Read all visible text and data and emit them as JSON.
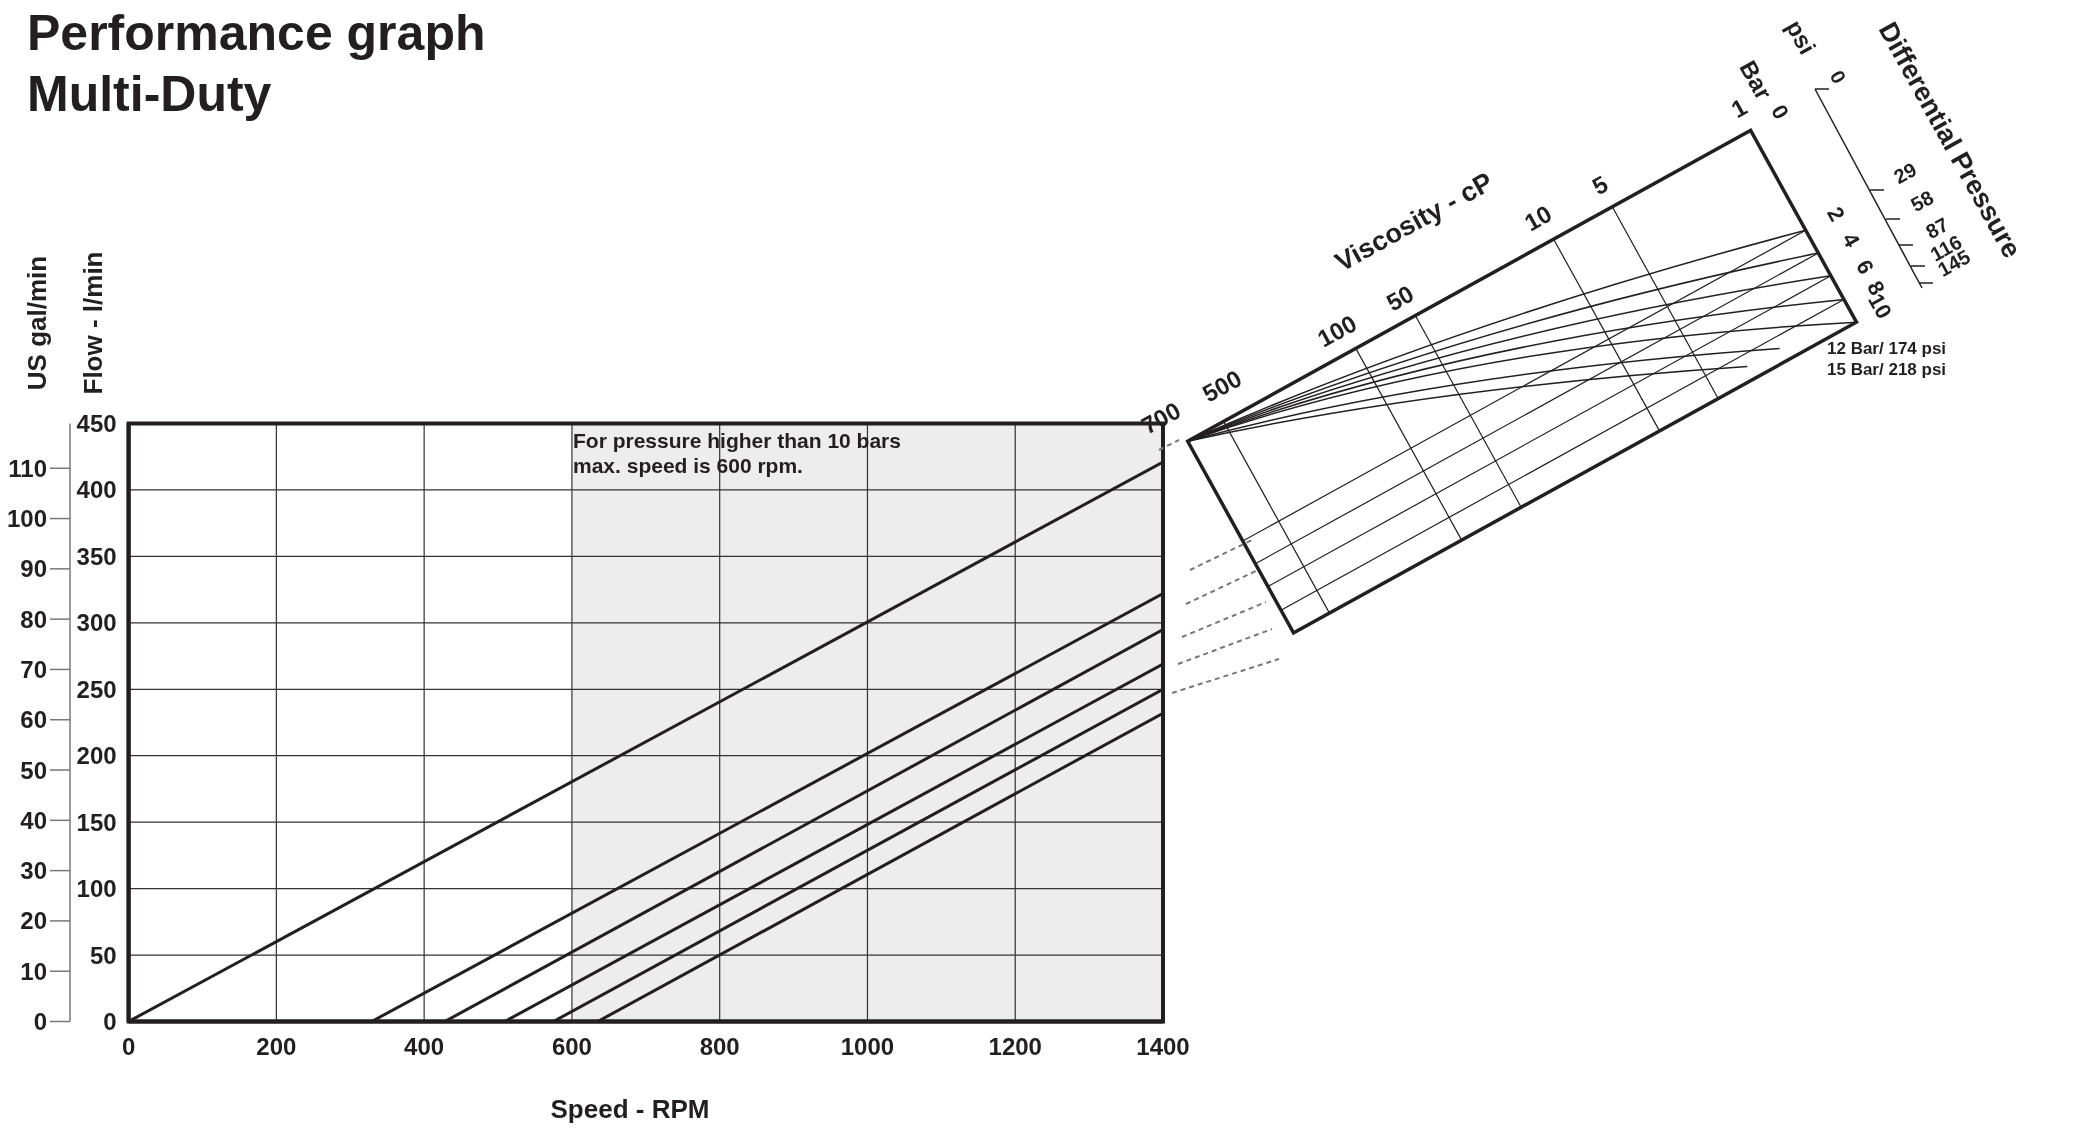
{
  "chart_data": [
    {
      "type": "line",
      "title": "Performance graph",
      "subtitle": "Multi-Duty",
      "xlabel": "Speed - RPM",
      "ylabel": "Flow - l/min",
      "y2label": "US gal/min",
      "annotations": [
        "For pressure higher than 10 bars\nmax. speed is 600 rpm."
      ],
      "xlim": [
        0,
        1400
      ],
      "xticks": [
        0,
        200,
        400,
        600,
        800,
        1000,
        1200,
        1400
      ],
      "ylim": [
        0,
        450
      ],
      "yticks": [
        0,
        50,
        100,
        150,
        200,
        250,
        300,
        350,
        400,
        450
      ],
      "y2lim": [
        0,
        118.9
      ],
      "y2ticks": [
        0,
        10,
        20,
        30,
        40,
        50,
        60,
        70,
        80,
        90,
        100,
        110
      ],
      "grid": true,
      "bands": [
        {
          "axis": "x",
          "from": 600,
          "to": 1400,
          "color": "#ededed"
        }
      ],
      "series": [
        {
          "color": "#231f20",
          "x": [
            0,
            1400
          ],
          "values": [
            0,
            421
          ]
        },
        {
          "color": "#231f20",
          "x": [
            0,
            329,
            1400
          ],
          "values": [
            0,
            0,
            322
          ]
        },
        {
          "color": "#231f20",
          "x": [
            0,
            428,
            1400
          ],
          "values": [
            0,
            0,
            295
          ]
        },
        {
          "color": "#231f20",
          "x": [
            0,
            509,
            1400
          ],
          "values": [
            0,
            0,
            269
          ]
        },
        {
          "color": "#231f20",
          "x": [
            0,
            575,
            1400
          ],
          "values": [
            0,
            0,
            250
          ]
        },
        {
          "color": "#231f20",
          "x": [
            0,
            635,
            1400
          ],
          "values": [
            0,
            0,
            232
          ]
        }
      ]
    },
    {
      "type": "other",
      "xlabel": "Viscosity - cP",
      "ylabel": "Differential Pressure",
      "annotations": [
        "Bar",
        "psi",
        "1",
        "5",
        "10",
        "50",
        "100",
        "500",
        "700",
        "0",
        "2",
        "4",
        "6",
        "8",
        "10",
        "0",
        "29",
        "58",
        "87",
        "116",
        "145",
        "12 Bar/ 174 psi",
        "15 Bar/ 218 psi"
      ]
    }
  ]
}
